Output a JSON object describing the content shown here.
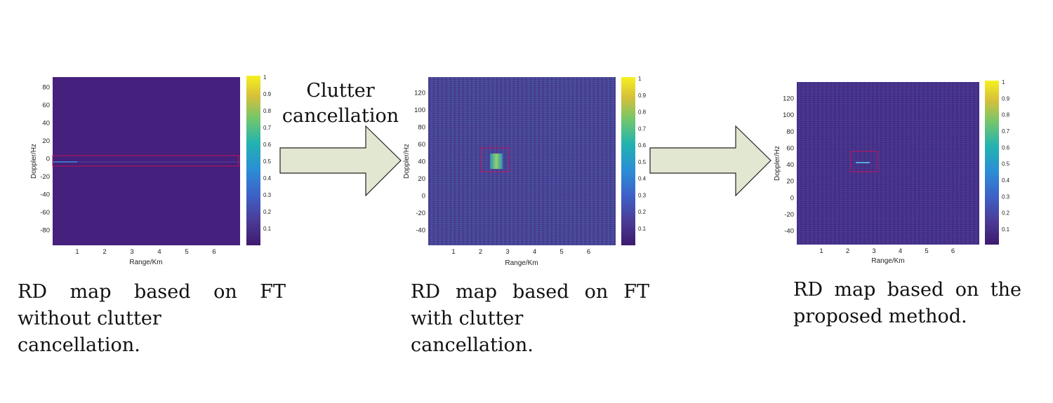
{
  "panels": [
    {
      "id": "p1",
      "xlabel": "Range/Km",
      "ylabel": "Doppler/Hz",
      "xticks": [
        "1",
        "2",
        "3",
        "4",
        "5",
        "6"
      ],
      "yticks": [
        "80",
        "60",
        "40",
        "20",
        "0",
        "-20",
        "-40",
        "-60",
        "-80"
      ],
      "colorbar_ticks": [
        "1",
        "0.9",
        "0.8",
        "0.7",
        "0.6",
        "0.5",
        "0.4",
        "0.3",
        "0.2",
        "0.1"
      ],
      "caption_line1": "RD map based on FT",
      "caption_line2": "without clutter cancellation."
    },
    {
      "id": "p2",
      "xlabel": "Range/Km",
      "ylabel": "Doppler/Hz",
      "xticks": [
        "1",
        "2",
        "3",
        "4",
        "5",
        "6"
      ],
      "yticks": [
        "120",
        "100",
        "80",
        "60",
        "40",
        "20",
        "0",
        "-20",
        "-40"
      ],
      "colorbar_ticks": [
        "1",
        "0.9",
        "0.8",
        "0.7",
        "0.6",
        "0.5",
        "0.4",
        "0.3",
        "0.2",
        "0.1"
      ],
      "caption_line1": "RD map based on FT",
      "caption_line2": "with clutter cancellation."
    },
    {
      "id": "p3",
      "xlabel": "Range/Km",
      "ylabel": "Doppler/Hz",
      "xticks": [
        "1",
        "2",
        "3",
        "4",
        "5",
        "6"
      ],
      "yticks": [
        "120",
        "100",
        "80",
        "60",
        "40",
        "20",
        "0",
        "-20",
        "-40"
      ],
      "colorbar_ticks": [
        "1",
        "0.9",
        "0.8",
        "0.7",
        "0.6",
        "0.5",
        "0.4",
        "0.3",
        "0.2",
        "0.1"
      ],
      "caption_line1": "RD map based on the",
      "caption_line2": "proposed method."
    }
  ],
  "arrows": [
    {
      "label_line1": "Clutter",
      "label_line2": "cancellation"
    },
    {
      "label_line1": "",
      "label_line2": ""
    }
  ],
  "colors": {
    "plot_background": "#46207a",
    "noise_background": "#4a3f92",
    "highlight_box": "#c0145a",
    "arrow_fill": "#e2e7d2",
    "arrow_stroke": "#222222"
  }
}
